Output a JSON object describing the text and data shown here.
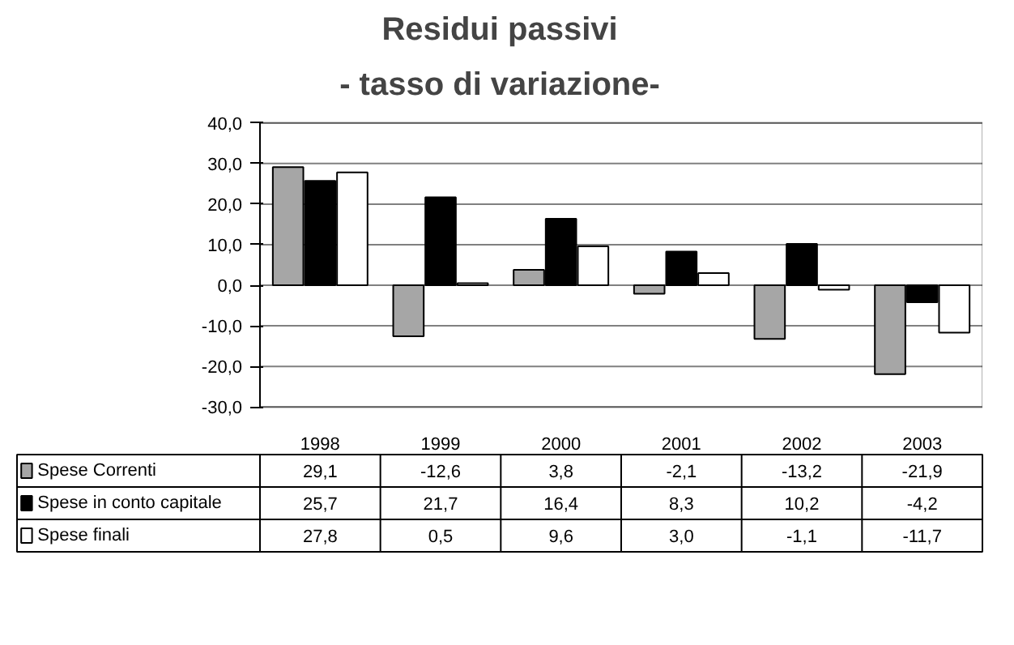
{
  "chart_data": {
    "type": "bar",
    "title": "Residui passivi",
    "subtitle": "- tasso di variazione-",
    "categories": [
      "1998",
      "1999",
      "2000",
      "2001",
      "2002",
      "2003"
    ],
    "series": [
      {
        "name": "Spese Correnti",
        "color": "#a6a6a6",
        "values": [
          29.1,
          -12.6,
          3.8,
          -2.1,
          -13.2,
          -21.9
        ],
        "value_labels": [
          "29,1",
          "-12,6",
          "3,8",
          "-2,1",
          "-13,2",
          "-21,9"
        ]
      },
      {
        "name": "Spese in conto capitale",
        "color": "#000000",
        "values": [
          25.7,
          21.7,
          16.4,
          8.3,
          10.2,
          -4.2
        ],
        "value_labels": [
          "25,7",
          "21,7",
          "16,4",
          "8,3",
          "10,2",
          "-4,2"
        ]
      },
      {
        "name": "Spese finali",
        "color": "#ffffff",
        "values": [
          27.8,
          0.5,
          9.6,
          3.0,
          -1.1,
          -11.7
        ],
        "value_labels": [
          "27,8",
          "0,5",
          "9,6",
          "3,0",
          "-1,1",
          "-11,7"
        ]
      }
    ],
    "ylim": [
      -30,
      40
    ],
    "yticks": [
      {
        "value": -30,
        "label": "-30,0"
      },
      {
        "value": -20,
        "label": "-20,0"
      },
      {
        "value": -10,
        "label": "-10,0"
      },
      {
        "value": 0,
        "label": "0,0"
      },
      {
        "value": 10,
        "label": "10,0"
      },
      {
        "value": 20,
        "label": "20,0"
      },
      {
        "value": 30,
        "label": "30,0"
      },
      {
        "value": 40,
        "label": "40,0"
      }
    ],
    "grid": "y",
    "legend": "bottom"
  }
}
